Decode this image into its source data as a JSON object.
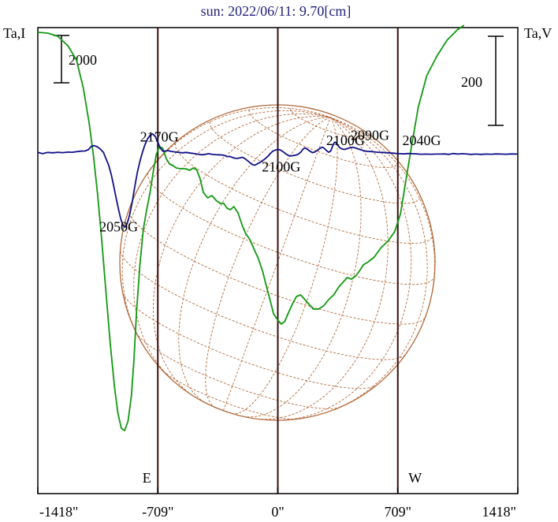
{
  "chart_data": {
    "type": "line",
    "title": "sun: 2022/06/11: 9.70[cm]",
    "left_axis_label": "Ta,I",
    "right_axis_label": "Ta,V",
    "x_ticks": [
      {
        "value": -1418,
        "label": "-1418\""
      },
      {
        "value": -709,
        "label": "-709\""
      },
      {
        "value": 0,
        "label": "0\""
      },
      {
        "value": 709,
        "label": "709\""
      },
      {
        "value": 1418,
        "label": "1418\""
      }
    ],
    "xlim": [
      -1418,
      1418
    ],
    "limb_markers": [
      {
        "x": -709,
        "label": "E"
      },
      {
        "x": 709,
        "label": "W"
      }
    ],
    "scale_bars": [
      {
        "axis": "left",
        "label": "2000"
      },
      {
        "axis": "right",
        "label": "200"
      }
    ],
    "series": [
      {
        "key": "intensity",
        "color": "#119911",
        "points": [
          [
            -1418,
            585
          ],
          [
            -1360,
            584
          ],
          [
            -1300,
            580
          ],
          [
            -1240,
            568
          ],
          [
            -1190,
            550
          ],
          [
            -1150,
            515
          ],
          [
            -1115,
            470
          ],
          [
            -1090,
            430
          ],
          [
            -1065,
            380
          ],
          [
            -1040,
            320
          ],
          [
            -1015,
            255
          ],
          [
            -990,
            190
          ],
          [
            -965,
            135
          ],
          [
            -945,
            102
          ],
          [
            -925,
            83
          ],
          [
            -905,
            80
          ],
          [
            -885,
            92
          ],
          [
            -865,
            125
          ],
          [
            -850,
            170
          ],
          [
            -835,
            230
          ],
          [
            -815,
            290
          ],
          [
            -795,
            335
          ],
          [
            -775,
            360
          ],
          [
            -755,
            382
          ],
          [
            -735,
            410
          ],
          [
            -718,
            430
          ],
          [
            -700,
            440
          ],
          [
            -680,
            438
          ],
          [
            -660,
            425
          ],
          [
            -640,
            418
          ],
          [
            -620,
            416
          ],
          [
            -600,
            413
          ],
          [
            -575,
            412
          ],
          [
            -545,
            412
          ],
          [
            -520,
            410
          ],
          [
            -500,
            413
          ],
          [
            -480,
            411
          ],
          [
            -460,
            400
          ],
          [
            -440,
            382
          ],
          [
            -415,
            375
          ],
          [
            -390,
            378
          ],
          [
            -365,
            372
          ],
          [
            -340,
            368
          ],
          [
            -320,
            368
          ],
          [
            -300,
            362
          ],
          [
            -280,
            360
          ],
          [
            -260,
            364
          ],
          [
            -235,
            356
          ],
          [
            -210,
            340
          ],
          [
            -190,
            330
          ],
          [
            -165,
            322
          ],
          [
            -140,
            310
          ],
          [
            -115,
            298
          ],
          [
            -90,
            282
          ],
          [
            -70,
            265
          ],
          [
            -45,
            245
          ],
          [
            -25,
            228
          ],
          [
            0,
            220
          ],
          [
            20,
            215
          ],
          [
            40,
            218
          ],
          [
            60,
            228
          ],
          [
            85,
            240
          ],
          [
            110,
            250
          ],
          [
            135,
            252
          ],
          [
            160,
            246
          ],
          [
            185,
            240
          ],
          [
            210,
            234
          ],
          [
            240,
            234
          ],
          [
            270,
            238
          ],
          [
            300,
            246
          ],
          [
            330,
            252
          ],
          [
            360,
            262
          ],
          [
            385,
            268
          ],
          [
            410,
            274
          ],
          [
            435,
            272
          ],
          [
            460,
            276
          ],
          [
            485,
            283
          ],
          [
            505,
            290
          ],
          [
            535,
            294
          ],
          [
            570,
            300
          ],
          [
            610,
            312
          ],
          [
            650,
            320
          ],
          [
            690,
            332
          ],
          [
            725,
            355
          ],
          [
            755,
            395
          ],
          [
            790,
            440
          ],
          [
            830,
            490
          ],
          [
            880,
            530
          ],
          [
            940,
            555
          ],
          [
            1000,
            575
          ],
          [
            1060,
            588
          ],
          [
            1100,
            594
          ]
        ]
      },
      {
        "key": "polarization",
        "color": "#111188",
        "points": [
          [
            -1418,
            95
          ],
          [
            -1390,
            88
          ],
          [
            -1360,
            95
          ],
          [
            -1330,
            93
          ],
          [
            -1300,
            96
          ],
          [
            -1270,
            94
          ],
          [
            -1240,
            97
          ],
          [
            -1215,
            96
          ],
          [
            -1190,
            99
          ],
          [
            -1165,
            102
          ],
          [
            -1140,
            103
          ],
          [
            -1120,
            110
          ],
          [
            -1100,
            130
          ],
          [
            -1085,
            133
          ],
          [
            -1070,
            128
          ],
          [
            -1050,
            115
          ],
          [
            -1030,
            95
          ],
          [
            -1015,
            60
          ],
          [
            -1000,
            25
          ],
          [
            -985,
            -25
          ],
          [
            -970,
            -90
          ],
          [
            -955,
            -160
          ],
          [
            -940,
            -225
          ],
          [
            -928,
            -275
          ],
          [
            -915,
            -310
          ],
          [
            -903,
            -320
          ],
          [
            -890,
            -300
          ],
          [
            -875,
            -250
          ],
          [
            -860,
            -180
          ],
          [
            -845,
            -95
          ],
          [
            -830,
            -15
          ],
          [
            -815,
            45
          ],
          [
            -800,
            95
          ],
          [
            -785,
            138
          ],
          [
            -770,
            170
          ],
          [
            -755,
            190
          ],
          [
            -740,
            198
          ],
          [
            -725,
            185
          ],
          [
            -710,
            155
          ],
          [
            -695,
            120
          ],
          [
            -680,
            102
          ],
          [
            -665,
            103
          ],
          [
            -650,
            105
          ],
          [
            -630,
            101
          ],
          [
            -610,
            98
          ],
          [
            -590,
            96
          ],
          [
            -565,
            93
          ],
          [
            -540,
            95
          ],
          [
            -515,
            91
          ],
          [
            -490,
            88
          ],
          [
            -470,
            85
          ],
          [
            -450,
            82
          ],
          [
            -430,
            84
          ],
          [
            -410,
            88
          ],
          [
            -390,
            85
          ],
          [
            -370,
            83
          ],
          [
            -350,
            82
          ],
          [
            -330,
            81
          ],
          [
            -315,
            78
          ],
          [
            -300,
            72
          ],
          [
            -285,
            73
          ],
          [
            -270,
            68
          ],
          [
            -255,
            63
          ],
          [
            -240,
            62
          ],
          [
            -225,
            65
          ],
          [
            -210,
            68
          ],
          [
            -195,
            61
          ],
          [
            -180,
            50
          ],
          [
            -165,
            38
          ],
          [
            -150,
            27
          ],
          [
            -135,
            24
          ],
          [
            -120,
            32
          ],
          [
            -105,
            40
          ],
          [
            -90,
            50
          ],
          [
            -75,
            60
          ],
          [
            -60,
            72
          ],
          [
            -45,
            88
          ],
          [
            -30,
            102
          ],
          [
            -15,
            108
          ],
          [
            0,
            112
          ],
          [
            15,
            109
          ],
          [
            30,
            100
          ],
          [
            50,
            85
          ],
          [
            70,
            75
          ],
          [
            90,
            77
          ],
          [
            105,
            80
          ],
          [
            120,
            85
          ],
          [
            135,
            96
          ],
          [
            150,
            115
          ],
          [
            162,
            120
          ],
          [
            175,
            112
          ],
          [
            190,
            102
          ],
          [
            205,
            94
          ],
          [
            220,
            98
          ],
          [
            235,
            108
          ],
          [
            250,
            118
          ],
          [
            262,
            124
          ],
          [
            272,
            120
          ],
          [
            285,
            108
          ],
          [
            300,
            96
          ],
          [
            312,
            102
          ],
          [
            322,
            125
          ],
          [
            332,
            148
          ],
          [
            340,
            152
          ],
          [
            350,
            140
          ],
          [
            365,
            122
          ],
          [
            380,
            114
          ],
          [
            395,
            112
          ],
          [
            410,
            116
          ],
          [
            425,
            121
          ],
          [
            440,
            123
          ],
          [
            455,
            121
          ],
          [
            470,
            116
          ],
          [
            490,
            110
          ],
          [
            510,
            104
          ],
          [
            530,
            101
          ],
          [
            550,
            100
          ],
          [
            570,
            98
          ],
          [
            590,
            96
          ],
          [
            620,
            95
          ],
          [
            650,
            93
          ],
          [
            680,
            91
          ],
          [
            700,
            89
          ],
          [
            720,
            88
          ],
          [
            745,
            87
          ],
          [
            770,
            89
          ],
          [
            795,
            88
          ],
          [
            820,
            87
          ],
          [
            845,
            85
          ],
          [
            875,
            86
          ],
          [
            905,
            85
          ],
          [
            935,
            86
          ],
          [
            960,
            86
          ],
          [
            985,
            87
          ],
          [
            1010,
            84
          ],
          [
            1035,
            89
          ],
          [
            1065,
            86
          ],
          [
            1090,
            88
          ],
          [
            1120,
            86
          ],
          [
            1140,
            84
          ],
          [
            1170,
            86
          ],
          [
            1200,
            84
          ],
          [
            1230,
            86
          ],
          [
            1260,
            85
          ],
          [
            1290,
            87
          ],
          [
            1320,
            86
          ],
          [
            1350,
            85
          ],
          [
            1380,
            87
          ],
          [
            1418,
            86
          ]
        ]
      }
    ],
    "annotations": [
      {
        "text": "2170G",
        "x": -700,
        "y": 155
      },
      {
        "text": "2050G",
        "x": -940,
        "y": -345
      },
      {
        "text": "2100G",
        "x": 20,
        "y": -10
      },
      {
        "text": "2100G",
        "x": 400,
        "y": 135
      },
      {
        "text": "2090G",
        "x": 545,
        "y": 165
      },
      {
        "text": "2040G",
        "x": 850,
        "y": 135
      }
    ]
  }
}
